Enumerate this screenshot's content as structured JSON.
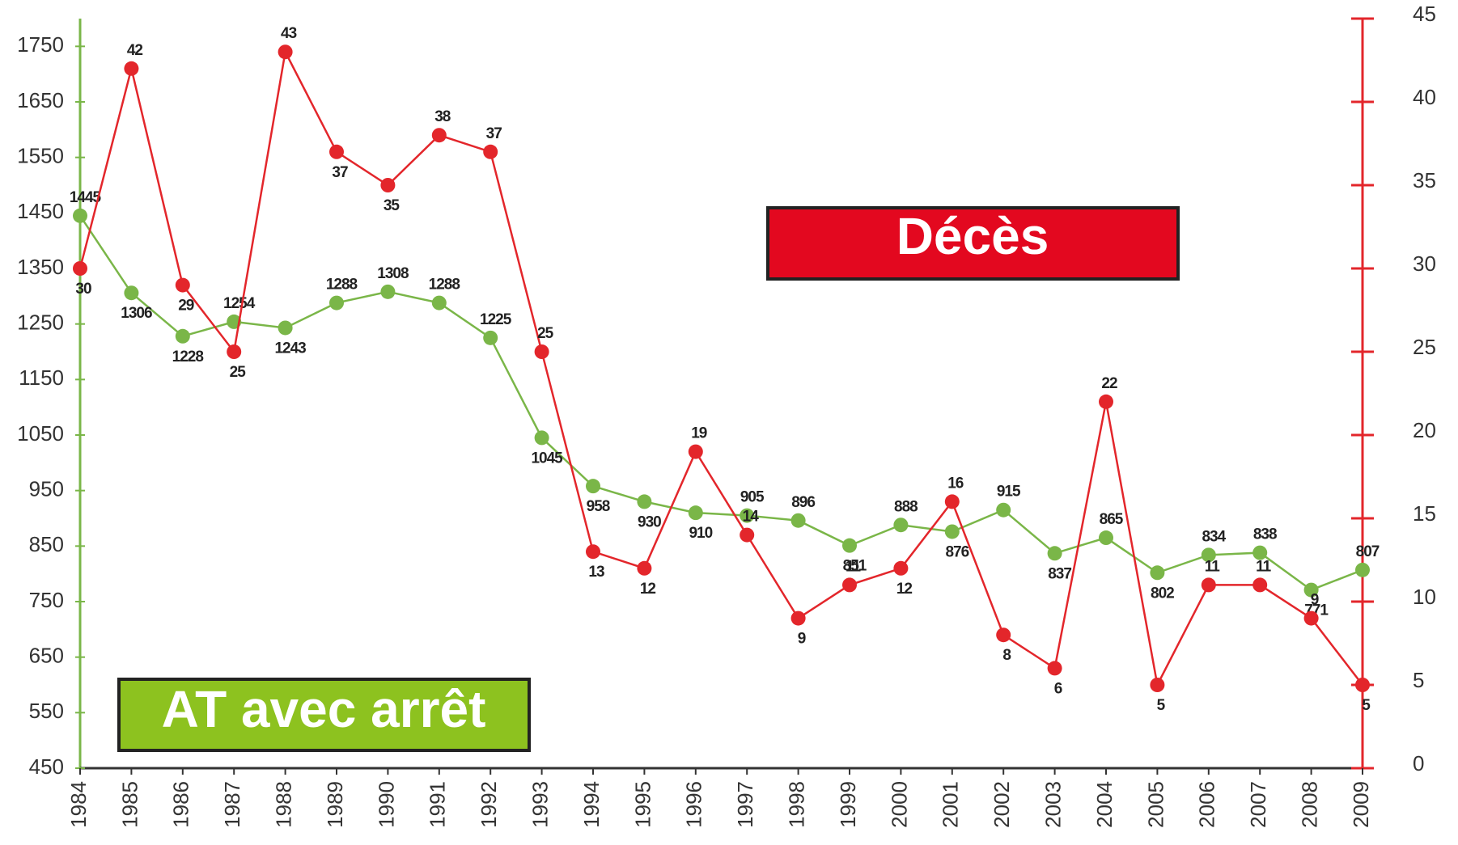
{
  "chart_data": {
    "type": "line",
    "categories": [
      "1984",
      "1985",
      "1986",
      "1987",
      "1988",
      "1989",
      "1990",
      "1991",
      "1992",
      "1993",
      "1994",
      "1995",
      "1996",
      "1997",
      "1998",
      "1999",
      "2000",
      "2001",
      "2002",
      "2003",
      "2004",
      "2005",
      "2006",
      "2007",
      "2008",
      "2009"
    ],
    "series": [
      {
        "name": "AT avec arrêt",
        "color": "#7ab648",
        "axis": "y",
        "values": [
          1445,
          1306,
          1228,
          1254,
          1243,
          1288,
          1308,
          1288,
          1225,
          1045,
          958,
          930,
          910,
          905,
          896,
          851,
          888,
          876,
          915,
          837,
          865,
          802,
          834,
          838,
          771,
          807
        ]
      },
      {
        "name": "Décès",
        "color": "#e3262b",
        "axis": "y2",
        "values": [
          30,
          42,
          29,
          25,
          43,
          37,
          35,
          38,
          37,
          25,
          13,
          12,
          19,
          14,
          9,
          11,
          12,
          16,
          8,
          6,
          22,
          5,
          11,
          11,
          9,
          5
        ]
      }
    ],
    "ylim": [
      450,
      1800
    ],
    "yticks": [
      450,
      550,
      650,
      750,
      850,
      950,
      1050,
      1150,
      1250,
      1350,
      1450,
      1550,
      1650,
      1750
    ],
    "y2lim": [
      0,
      45
    ],
    "y2ticks": [
      0,
      5,
      10,
      15,
      20,
      25,
      30,
      35,
      40,
      45
    ]
  }
}
